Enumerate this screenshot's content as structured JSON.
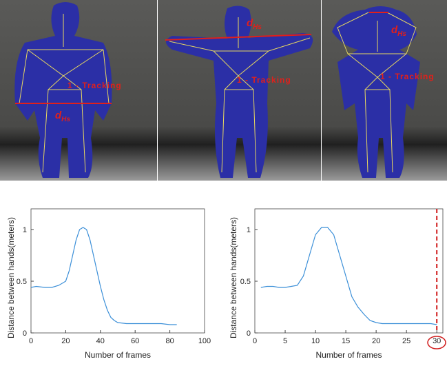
{
  "panels": [
    {
      "d": "d",
      "sub": "Hs",
      "tracking": "1 - Tracking"
    },
    {
      "d": "d",
      "sub": "Hs",
      "tracking": "1 - Tracking"
    },
    {
      "d": "d",
      "sub": "Hs",
      "tracking": "1 - Tracking"
    }
  ],
  "chart_data": [
    {
      "type": "line",
      "x_label": "Number of frames",
      "y_label": "Distance between hands(meters)",
      "x": [
        0,
        3,
        8,
        12,
        16,
        20,
        22,
        24,
        26,
        28,
        30,
        32,
        34,
        36,
        38,
        40,
        42,
        44,
        46,
        48,
        50,
        55,
        60,
        65,
        70,
        75,
        80,
        84
      ],
      "series": [
        {
          "color": "#3b8fd8",
          "values": [
            0.44,
            0.45,
            0.44,
            0.44,
            0.46,
            0.5,
            0.6,
            0.75,
            0.9,
            1.0,
            1.02,
            1.0,
            0.9,
            0.75,
            0.6,
            0.45,
            0.32,
            0.22,
            0.15,
            0.12,
            0.1,
            0.09,
            0.09,
            0.09,
            0.09,
            0.09,
            0.08,
            0.08
          ]
        }
      ],
      "xlim": [
        0,
        100
      ],
      "xticks": [
        0,
        20,
        40,
        60,
        80,
        100
      ],
      "ylim": [
        0,
        1.2
      ],
      "yticks": [
        0,
        0.5,
        1
      ]
    },
    {
      "type": "line",
      "x_label": "Number of frames",
      "y_label": "Distance between hands(meters)",
      "x": [
        1,
        2,
        3,
        4,
        5,
        6,
        7,
        8,
        9,
        10,
        11,
        12,
        13,
        14,
        15,
        16,
        17,
        18,
        19,
        20,
        21,
        22,
        23,
        24,
        25,
        26,
        27,
        28,
        29,
        30
      ],
      "series": [
        {
          "color": "#3b8fd8",
          "values": [
            0.44,
            0.45,
            0.45,
            0.44,
            0.44,
            0.45,
            0.46,
            0.55,
            0.75,
            0.95,
            1.02,
            1.02,
            0.95,
            0.75,
            0.55,
            0.35,
            0.25,
            0.18,
            0.12,
            0.1,
            0.09,
            0.09,
            0.09,
            0.09,
            0.09,
            0.09,
            0.09,
            0.09,
            0.09,
            0.08
          ]
        }
      ],
      "xlim": [
        0,
        31
      ],
      "xticks": [
        0,
        5,
        10,
        15,
        20,
        25,
        30
      ],
      "ylim": [
        0,
        1.2
      ],
      "yticks": [
        0,
        0.5,
        1
      ],
      "vline": {
        "x": 30,
        "color": "#d01c1c"
      }
    }
  ]
}
